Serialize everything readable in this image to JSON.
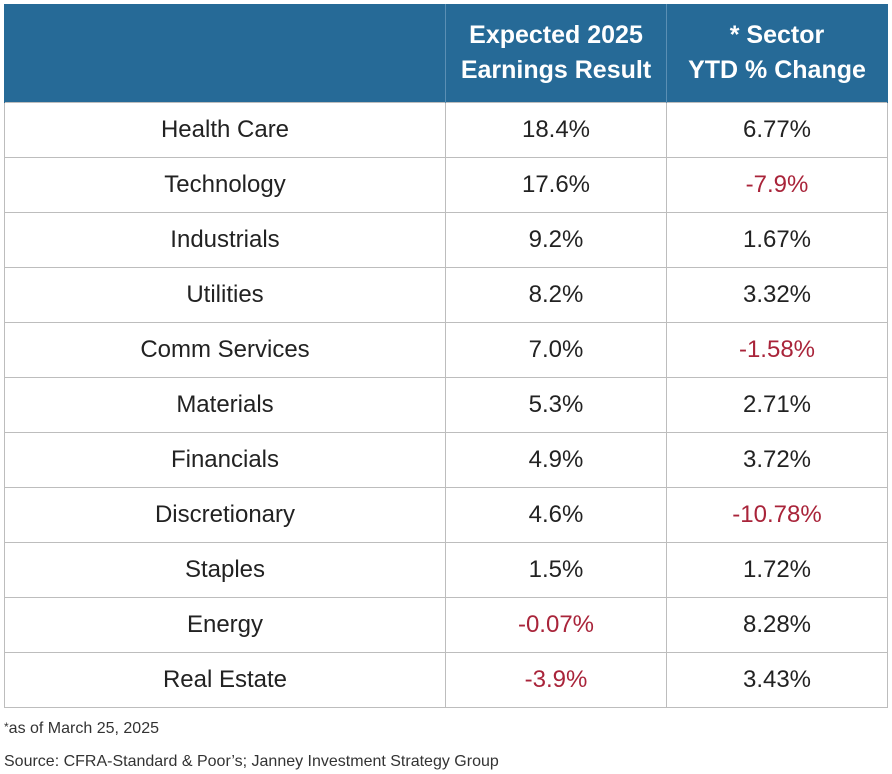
{
  "chart_data": {
    "type": "table",
    "columns": [
      "",
      "Expected 2025 Earnings Result",
      "* Sector YTD % Change"
    ],
    "header": {
      "col2_line1": "Expected 2025",
      "col2_line2": "Earnings Result",
      "col3_line1": "* Sector",
      "col3_line2": "YTD % Change"
    },
    "rows": [
      {
        "sector": "Health Care",
        "earnings": "18.4%",
        "earnings_neg": false,
        "ytd": "6.77%",
        "ytd_neg": false
      },
      {
        "sector": "Technology",
        "earnings": "17.6%",
        "earnings_neg": false,
        "ytd": "-7.9%",
        "ytd_neg": true
      },
      {
        "sector": "Industrials",
        "earnings": "9.2%",
        "earnings_neg": false,
        "ytd": "1.67%",
        "ytd_neg": false
      },
      {
        "sector": "Utilities",
        "earnings": "8.2%",
        "earnings_neg": false,
        "ytd": "3.32%",
        "ytd_neg": false
      },
      {
        "sector": "Comm Services",
        "earnings": "7.0%",
        "earnings_neg": false,
        "ytd": "-1.58%",
        "ytd_neg": true
      },
      {
        "sector": "Materials",
        "earnings": "5.3%",
        "earnings_neg": false,
        "ytd": "2.71%",
        "ytd_neg": false
      },
      {
        "sector": "Financials",
        "earnings": "4.9%",
        "earnings_neg": false,
        "ytd": "3.72%",
        "ytd_neg": false
      },
      {
        "sector": "Discretionary",
        "earnings": "4.6%",
        "earnings_neg": false,
        "ytd": "-10.78%",
        "ytd_neg": true
      },
      {
        "sector": "Staples",
        "earnings": "1.5%",
        "earnings_neg": false,
        "ytd": "1.72%",
        "ytd_neg": false
      },
      {
        "sector": "Energy",
        "earnings": "-0.07%",
        "earnings_neg": true,
        "ytd": "8.28%",
        "ytd_neg": false
      },
      {
        "sector": "Real Estate",
        "earnings": "-3.9%",
        "earnings_neg": true,
        "ytd": "3.43%",
        "ytd_neg": false
      }
    ],
    "colors": {
      "header_bg": "#266a97",
      "header_text": "#ffffff",
      "negative": "#a9243a",
      "positive": "#222222"
    }
  },
  "footnotes": {
    "asof_star": "*",
    "asof_text": "as of March 25, 2025",
    "source": "Source: CFRA-Standard & Poor’s; Janney Investment Strategy Group"
  }
}
